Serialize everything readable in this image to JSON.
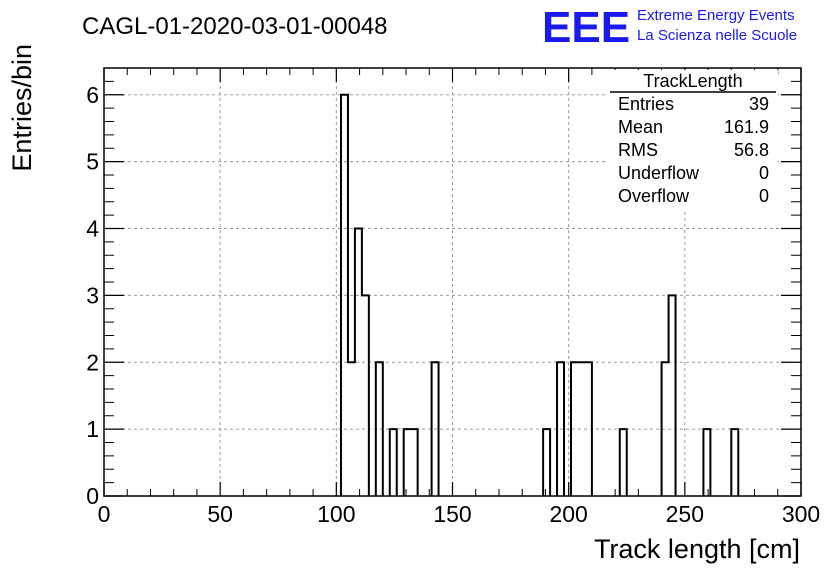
{
  "chart_data": {
    "type": "bar",
    "title": "CAGL-01-2020-03-01-00048",
    "xlabel": "Track length [cm]",
    "ylabel": "Entries/bin",
    "xlim": [
      0,
      300
    ],
    "ylim": [
      0,
      6.4
    ],
    "x_ticks": [
      "0",
      "50",
      "100",
      "150",
      "200",
      "250",
      "300"
    ],
    "y_ticks": [
      "0",
      "1",
      "2",
      "3",
      "4",
      "5",
      "6"
    ],
    "grid": true,
    "bin_width": 3,
    "bins": [
      {
        "x": 102,
        "value": 6
      },
      {
        "x": 105,
        "value": 2
      },
      {
        "x": 108,
        "value": 4
      },
      {
        "x": 111,
        "value": 3
      },
      {
        "x": 117,
        "value": 2
      },
      {
        "x": 123,
        "value": 1
      },
      {
        "x": 129,
        "value": 1
      },
      {
        "x": 132,
        "value": 1
      },
      {
        "x": 141,
        "value": 2
      },
      {
        "x": 189,
        "value": 1
      },
      {
        "x": 195,
        "value": 2
      },
      {
        "x": 201,
        "value": 2
      },
      {
        "x": 204,
        "value": 2
      },
      {
        "x": 207,
        "value": 2
      },
      {
        "x": 222,
        "value": 1
      },
      {
        "x": 240,
        "value": 2
      },
      {
        "x": 243,
        "value": 3
      },
      {
        "x": 258,
        "value": 1
      },
      {
        "x": 270,
        "value": 1
      }
    ]
  },
  "stats_box": {
    "title": "TrackLength",
    "rows": [
      {
        "label": "Entries",
        "value": "39"
      },
      {
        "label": "Mean",
        "value": "161.9"
      },
      {
        "label": "RMS",
        "value": "56.8"
      },
      {
        "label": "Underflow",
        "value": "0"
      },
      {
        "label": "Overflow",
        "value": "0"
      }
    ]
  },
  "logo": {
    "text": "EEE",
    "line1": "Extreme Energy Events",
    "line2": "La Scienza nelle Scuole",
    "color": "#1a1aee"
  }
}
